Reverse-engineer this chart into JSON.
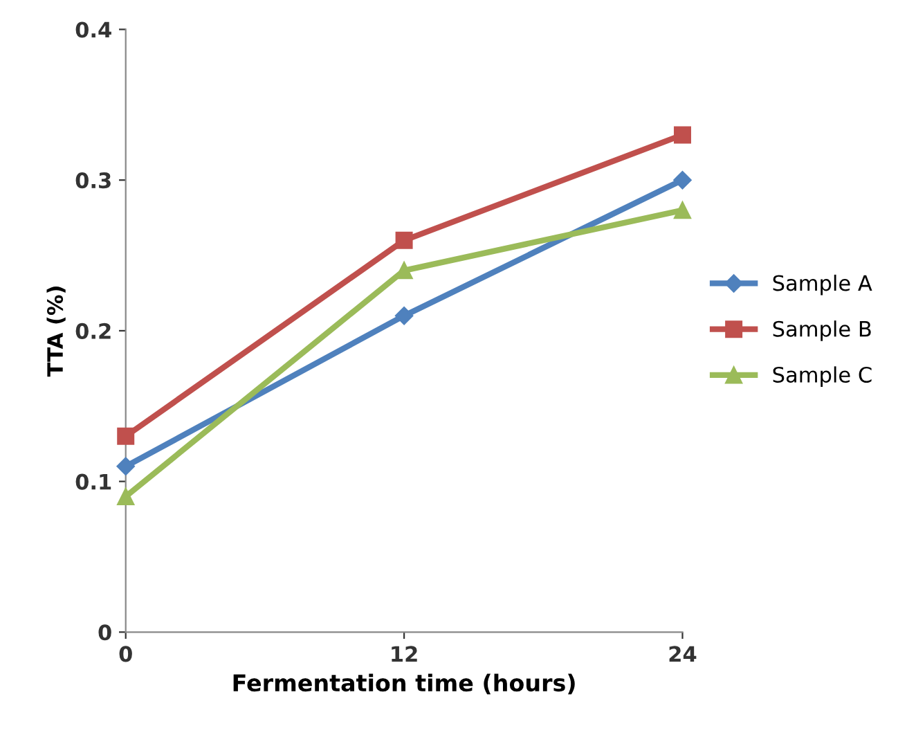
{
  "chart_data": {
    "type": "line",
    "xlabel": "Fermentation time (hours)",
    "ylabel": "TTA (%)",
    "x": [
      0,
      12,
      24
    ],
    "series": [
      {
        "name": "Sample A",
        "color": "#4f81bd",
        "marker": "diamond",
        "values": [
          0.11,
          0.21,
          0.3
        ]
      },
      {
        "name": "Sample B",
        "color": "#c0504d",
        "marker": "square",
        "values": [
          0.13,
          0.26,
          0.33
        ]
      },
      {
        "name": "Sample C",
        "color": "#9bbb59",
        "marker": "triangle",
        "values": [
          0.09,
          0.24,
          0.28
        ]
      }
    ],
    "xlim": [
      0,
      24
    ],
    "xticks": [
      0,
      12,
      24
    ],
    "ylim": [
      0,
      0.4
    ],
    "yticks": [
      0,
      0.1,
      0.2,
      0.3,
      0.4
    ],
    "grid": false,
    "legend": "right"
  }
}
